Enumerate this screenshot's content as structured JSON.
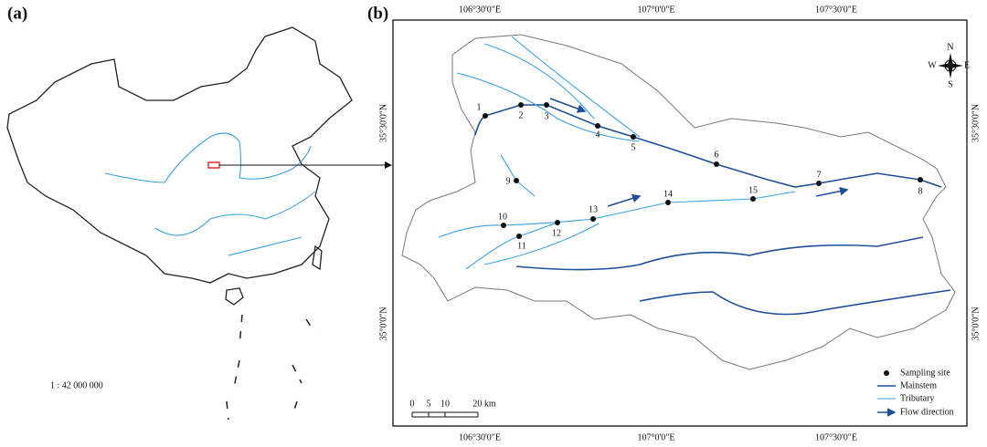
{
  "panel_a": {
    "label": "(a)",
    "scale": "1 : 42 000 000"
  },
  "panel_b": {
    "label": "(b)",
    "lon_labels": [
      "106°30'0\"E",
      "107°0'0\"E",
      "107°30'0\"E"
    ],
    "lat_labels": [
      "35°30'0\"N",
      "35°0'0\"N"
    ],
    "sites": [
      "1",
      "2",
      "3",
      "4",
      "5",
      "6",
      "7",
      "8",
      "9",
      "10",
      "11",
      "12",
      "13",
      "14",
      "15"
    ],
    "legend": [
      "Sampling site",
      "Mainstem",
      "Tributary",
      "Flow direction"
    ],
    "scale_bar": [
      "0",
      "5",
      "10",
      "20 km"
    ],
    "compass": {
      "n": "N",
      "e": "E",
      "s": "S",
      "w": "W"
    }
  }
}
